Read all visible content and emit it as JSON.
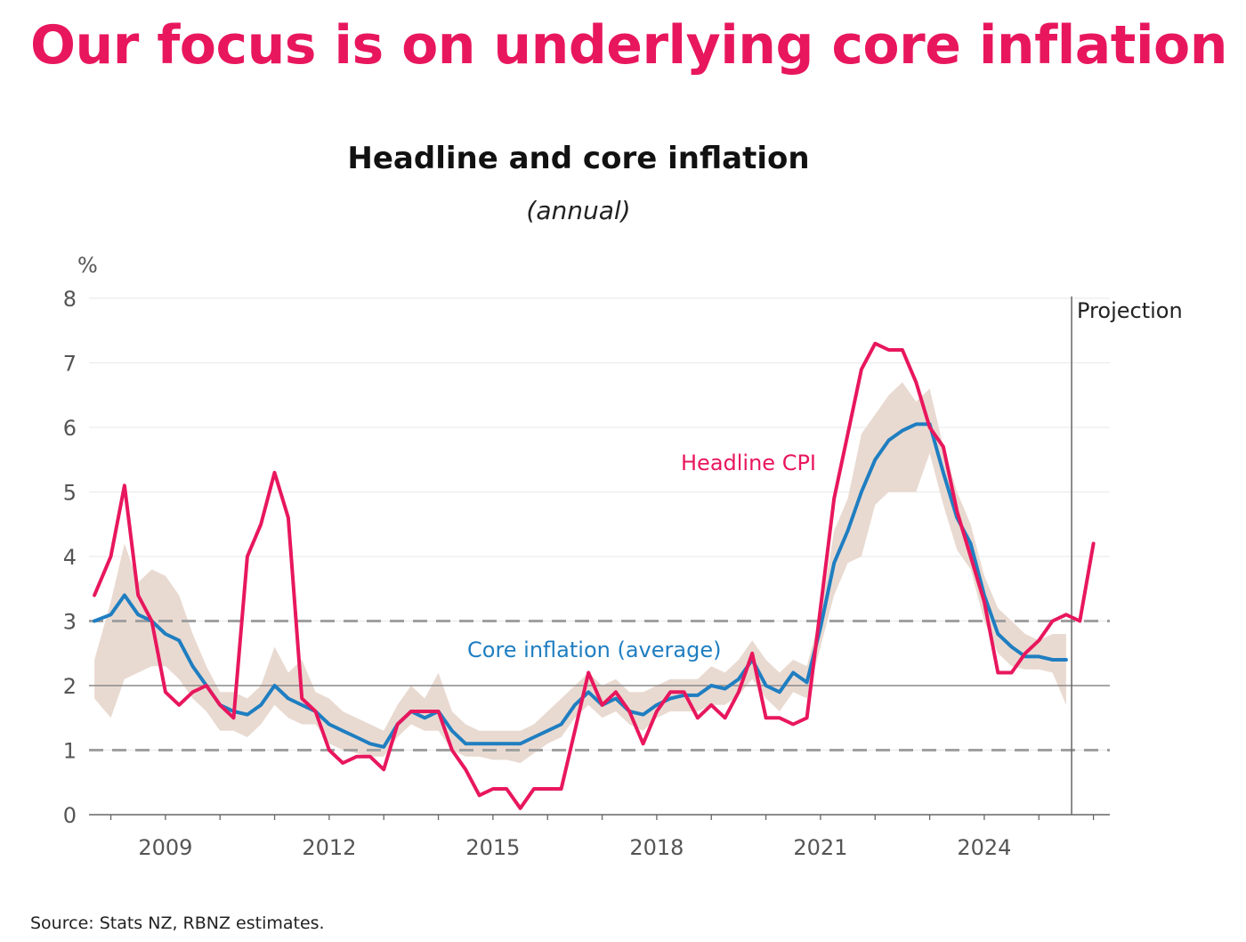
{
  "page_title": "Our focus is on underlying core inflation",
  "source": "Source: Stats NZ, RBNZ estimates.",
  "colors": {
    "headline": "#e8175d",
    "core": "#1f7ec1",
    "band": "#e8d8cf",
    "title": "#e8175d"
  },
  "chart_data": {
    "type": "line",
    "title": "Headline and core inflation",
    "subtitle": "(annual)",
    "ylabel": "%",
    "ylim": [
      0,
      8
    ],
    "yticks": [
      0,
      1,
      2,
      3,
      4,
      5,
      6,
      7,
      8
    ],
    "xlim": [
      2007.6,
      2026.3
    ],
    "xticks": [
      2009,
      2012,
      2015,
      2018,
      2021,
      2024
    ],
    "xtick_labels": [
      "2009",
      "2012",
      "2015",
      "2018",
      "2021",
      "2024"
    ],
    "target_band": [
      1,
      3
    ],
    "midpoint": 2,
    "projection_start": 2025.6,
    "projection_label": "Projection",
    "annotations": {
      "headline": "Headline CPI",
      "core": "Core inflation (average)"
    },
    "series": [
      {
        "name": "Headline CPI",
        "x": [
          2007.7,
          2008.0,
          2008.25,
          2008.5,
          2008.75,
          2009.0,
          2009.25,
          2009.5,
          2009.75,
          2010.0,
          2010.25,
          2010.5,
          2010.75,
          2011.0,
          2011.25,
          2011.5,
          2011.75,
          2012.0,
          2012.25,
          2012.5,
          2012.75,
          2013.0,
          2013.25,
          2013.5,
          2013.75,
          2014.0,
          2014.25,
          2014.5,
          2014.75,
          2015.0,
          2015.25,
          2015.5,
          2015.75,
          2016.0,
          2016.25,
          2016.5,
          2016.75,
          2017.0,
          2017.25,
          2017.5,
          2017.75,
          2018.0,
          2018.25,
          2018.5,
          2018.75,
          2019.0,
          2019.25,
          2019.5,
          2019.75,
          2020.0,
          2020.25,
          2020.5,
          2020.75,
          2021.0,
          2021.25,
          2021.5,
          2021.75,
          2022.0,
          2022.25,
          2022.5,
          2022.75,
          2023.0,
          2023.25,
          2023.5,
          2023.75,
          2024.0,
          2024.25,
          2024.5,
          2024.75,
          2025.0,
          2025.25,
          2025.5,
          2025.75,
          2026.0
        ],
        "values": [
          3.4,
          4.0,
          5.1,
          3.4,
          3.0,
          1.9,
          1.7,
          1.9,
          2.0,
          1.7,
          1.5,
          4.0,
          4.5,
          5.3,
          4.6,
          1.8,
          1.6,
          1.0,
          0.8,
          0.9,
          0.9,
          0.7,
          1.4,
          1.6,
          1.6,
          1.6,
          1.0,
          0.7,
          0.3,
          0.4,
          0.4,
          0.1,
          0.4,
          0.4,
          0.4,
          1.3,
          2.2,
          1.7,
          1.9,
          1.6,
          1.1,
          1.6,
          1.9,
          1.9,
          1.5,
          1.7,
          1.5,
          1.9,
          2.5,
          1.5,
          1.5,
          1.4,
          1.5,
          3.2,
          4.9,
          5.9,
          6.9,
          7.3,
          7.2,
          7.2,
          6.7,
          6.0,
          5.7,
          4.7,
          4.0,
          3.3,
          2.2,
          2.2,
          2.5,
          2.7,
          3.0,
          3.1,
          3.0,
          4.2
        ]
      },
      {
        "name": "Core inflation (average)",
        "x": [
          2007.7,
          2008.0,
          2008.25,
          2008.5,
          2008.75,
          2009.0,
          2009.25,
          2009.5,
          2009.75,
          2010.0,
          2010.25,
          2010.5,
          2010.75,
          2011.0,
          2011.25,
          2011.5,
          2011.75,
          2012.0,
          2012.25,
          2012.5,
          2012.75,
          2013.0,
          2013.25,
          2013.5,
          2013.75,
          2014.0,
          2014.25,
          2014.5,
          2014.75,
          2015.0,
          2015.25,
          2015.5,
          2015.75,
          2016.0,
          2016.25,
          2016.5,
          2016.75,
          2017.0,
          2017.25,
          2017.5,
          2017.75,
          2018.0,
          2018.25,
          2018.5,
          2018.75,
          2019.0,
          2019.25,
          2019.5,
          2019.75,
          2020.0,
          2020.25,
          2020.5,
          2020.75,
          2021.0,
          2021.25,
          2021.5,
          2021.75,
          2022.0,
          2022.25,
          2022.5,
          2022.75,
          2023.0,
          2023.25,
          2023.5,
          2023.75,
          2024.0,
          2024.25,
          2024.5,
          2024.75,
          2025.0,
          2025.25,
          2025.5
        ],
        "values": [
          3.0,
          3.1,
          3.4,
          3.1,
          3.0,
          2.8,
          2.7,
          2.3,
          2.0,
          1.7,
          1.6,
          1.55,
          1.7,
          2.0,
          1.8,
          1.7,
          1.6,
          1.4,
          1.3,
          1.2,
          1.1,
          1.05,
          1.4,
          1.6,
          1.5,
          1.6,
          1.3,
          1.1,
          1.1,
          1.1,
          1.1,
          1.1,
          1.2,
          1.3,
          1.4,
          1.7,
          1.9,
          1.7,
          1.8,
          1.6,
          1.55,
          1.7,
          1.8,
          1.85,
          1.85,
          2.0,
          1.95,
          2.1,
          2.4,
          2.0,
          1.9,
          2.2,
          2.05,
          2.9,
          3.9,
          4.4,
          5.0,
          5.5,
          5.8,
          5.95,
          6.05,
          6.05,
          5.3,
          4.6,
          4.2,
          3.4,
          2.8,
          2.6,
          2.45,
          2.45,
          2.4,
          2.4
        ]
      }
    ],
    "band": {
      "name": "Core inflation range",
      "x": [
        2007.7,
        2008.0,
        2008.25,
        2008.5,
        2008.75,
        2009.0,
        2009.25,
        2009.5,
        2009.75,
        2010.0,
        2010.25,
        2010.5,
        2010.75,
        2011.0,
        2011.25,
        2011.5,
        2011.75,
        2012.0,
        2012.25,
        2012.5,
        2012.75,
        2013.0,
        2013.25,
        2013.5,
        2013.75,
        2014.0,
        2014.25,
        2014.5,
        2014.75,
        2015.0,
        2015.25,
        2015.5,
        2015.75,
        2016.0,
        2016.25,
        2016.5,
        2016.75,
        2017.0,
        2017.25,
        2017.5,
        2017.75,
        2018.0,
        2018.25,
        2018.5,
        2018.75,
        2019.0,
        2019.25,
        2019.5,
        2019.75,
        2020.0,
        2020.25,
        2020.5,
        2020.75,
        2021.0,
        2021.25,
        2021.5,
        2021.75,
        2022.0,
        2022.25,
        2022.5,
        2022.75,
        2023.0,
        2023.25,
        2023.5,
        2023.75,
        2024.0,
        2024.25,
        2024.5,
        2024.75,
        2025.0,
        2025.25,
        2025.5
      ],
      "low": [
        1.8,
        1.5,
        2.1,
        2.2,
        2.3,
        2.3,
        2.1,
        1.8,
        1.6,
        1.3,
        1.3,
        1.2,
        1.4,
        1.7,
        1.5,
        1.4,
        1.4,
        1.1,
        1.0,
        0.95,
        0.9,
        0.9,
        1.2,
        1.4,
        1.3,
        1.3,
        1.0,
        0.9,
        0.9,
        0.85,
        0.85,
        0.8,
        0.95,
        1.1,
        1.2,
        1.5,
        1.7,
        1.5,
        1.6,
        1.4,
        1.3,
        1.5,
        1.6,
        1.6,
        1.6,
        1.7,
        1.7,
        1.85,
        2.1,
        1.8,
        1.6,
        1.9,
        1.8,
        2.6,
        3.4,
        3.9,
        4.0,
        4.8,
        5.0,
        5.0,
        5.0,
        5.6,
        4.8,
        4.1,
        3.8,
        3.0,
        2.5,
        2.3,
        2.25,
        2.25,
        2.2,
        1.7
      ],
      "high": [
        2.4,
        3.3,
        4.2,
        3.6,
        3.8,
        3.7,
        3.4,
        2.8,
        2.3,
        1.9,
        1.9,
        1.8,
        2.0,
        2.6,
        2.2,
        2.4,
        1.9,
        1.8,
        1.6,
        1.5,
        1.4,
        1.3,
        1.7,
        2.0,
        1.8,
        2.2,
        1.6,
        1.4,
        1.3,
        1.3,
        1.3,
        1.3,
        1.4,
        1.6,
        1.8,
        2.0,
        2.2,
        2.0,
        2.1,
        1.9,
        1.9,
        2.0,
        2.1,
        2.1,
        2.1,
        2.3,
        2.2,
        2.4,
        2.7,
        2.4,
        2.2,
        2.4,
        2.3,
        3.1,
        4.4,
        4.9,
        5.9,
        6.2,
        6.5,
        6.7,
        6.4,
        6.6,
        5.7,
        5.0,
        4.5,
        3.7,
        3.2,
        3.0,
        2.8,
        2.7,
        2.8,
        2.8
      ]
    }
  }
}
